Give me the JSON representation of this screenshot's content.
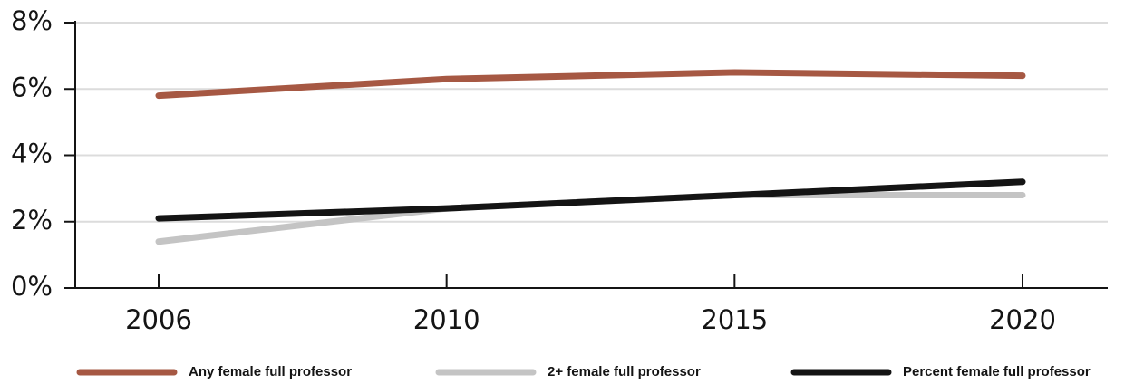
{
  "chart_data": {
    "type": "line",
    "categories": [
      "2006",
      "2010",
      "2015",
      "2020"
    ],
    "series": [
      {
        "name": "Any female full professor",
        "color": "#a65843",
        "values": [
          5.8,
          6.3,
          6.5,
          6.4
        ]
      },
      {
        "name": "2+ female full professor",
        "color": "#c4c4c4",
        "values": [
          1.4,
          2.4,
          2.8,
          2.8
        ]
      },
      {
        "name": "Percent female full professor",
        "color": "#141414",
        "values": [
          2.1,
          2.4,
          2.8,
          3.2
        ]
      }
    ],
    "ylim": [
      0,
      8
    ],
    "yticks": [
      {
        "value": 0,
        "label": "0%"
      },
      {
        "value": 2,
        "label": "2%"
      },
      {
        "value": 4,
        "label": "4%"
      },
      {
        "value": 6,
        "label": "6%"
      },
      {
        "value": 8,
        "label": "8%"
      }
    ],
    "grid": true,
    "legend": "bottom"
  }
}
